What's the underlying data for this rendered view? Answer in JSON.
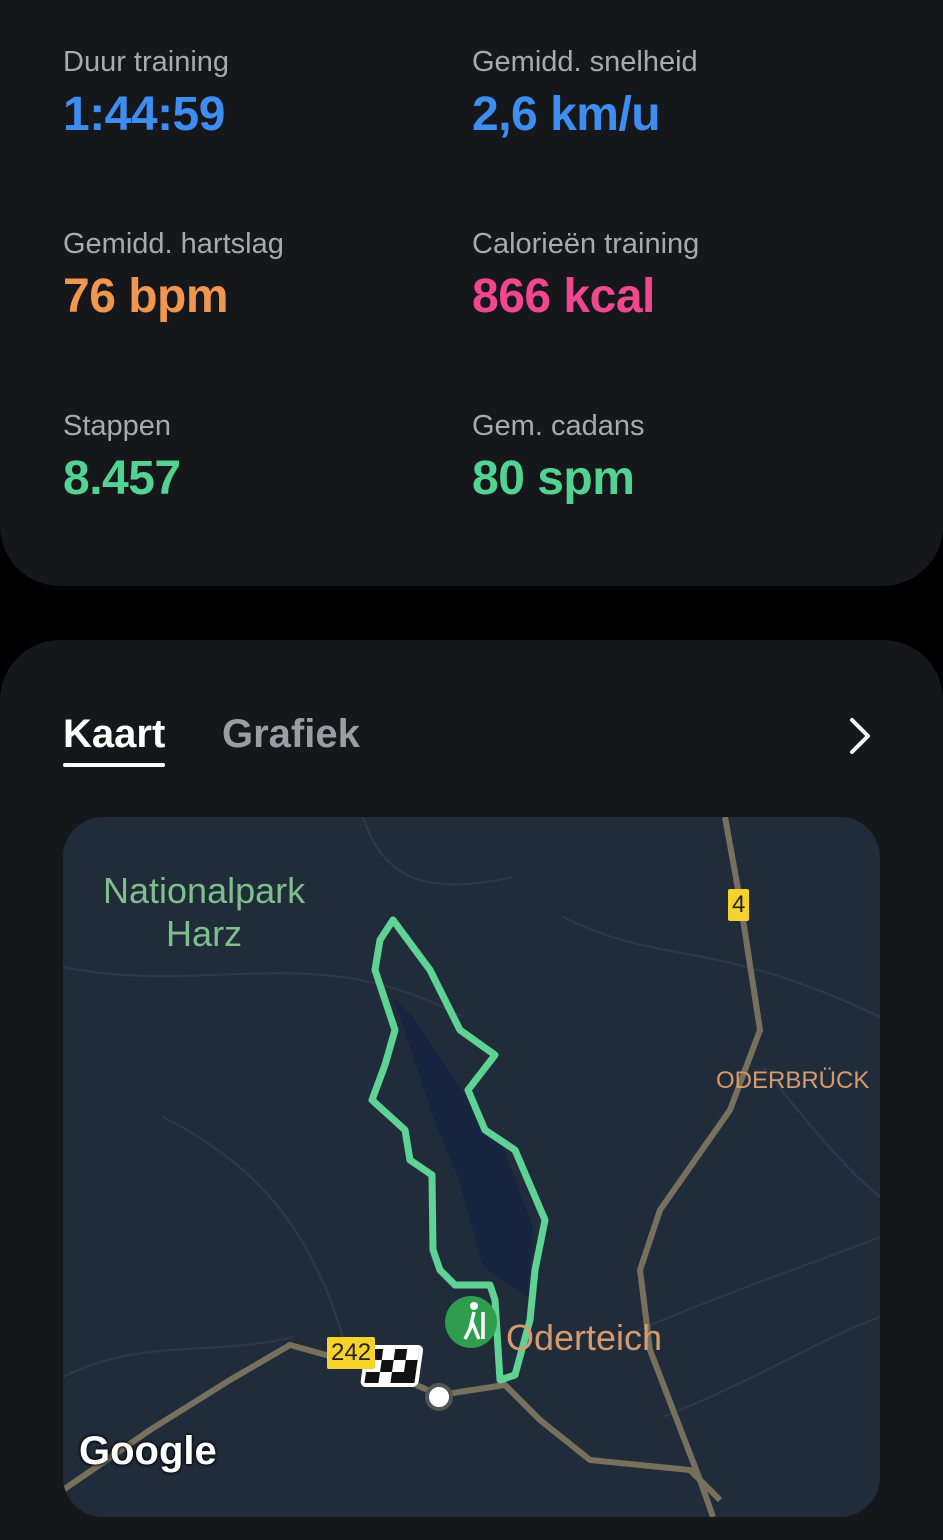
{
  "stats": [
    {
      "label": "Duur training",
      "value": "1:44:59",
      "color": "#3d8ef0"
    },
    {
      "label": "Gemidd. snelheid",
      "value": "2,6 km/u",
      "color": "#3d8ef0"
    },
    {
      "label": "Gemidd. hartslag",
      "value": "76 bpm",
      "color": "#f0964f"
    },
    {
      "label": "Calorieën training",
      "value": "866 kcal",
      "color": "#f0478f"
    },
    {
      "label": "Stappen",
      "value": "8.457",
      "color": "#52d391"
    },
    {
      "label": "Gem. cadans",
      "value": "80 spm",
      "color": "#52d391"
    }
  ],
  "tabs": {
    "map": "Kaart",
    "graph": "Grafiek",
    "active": "Kaart"
  },
  "map": {
    "park_line1": "Nationalpark",
    "park_line2": "Harz",
    "town": "ODERBRÜCK",
    "lake": "Oderteich",
    "road_4": "4",
    "road_242": "242",
    "attribution": "Google",
    "route_color": "#5fd394",
    "start_icon": "hiking-icon",
    "finish_icon": "checkered-flag-icon"
  }
}
